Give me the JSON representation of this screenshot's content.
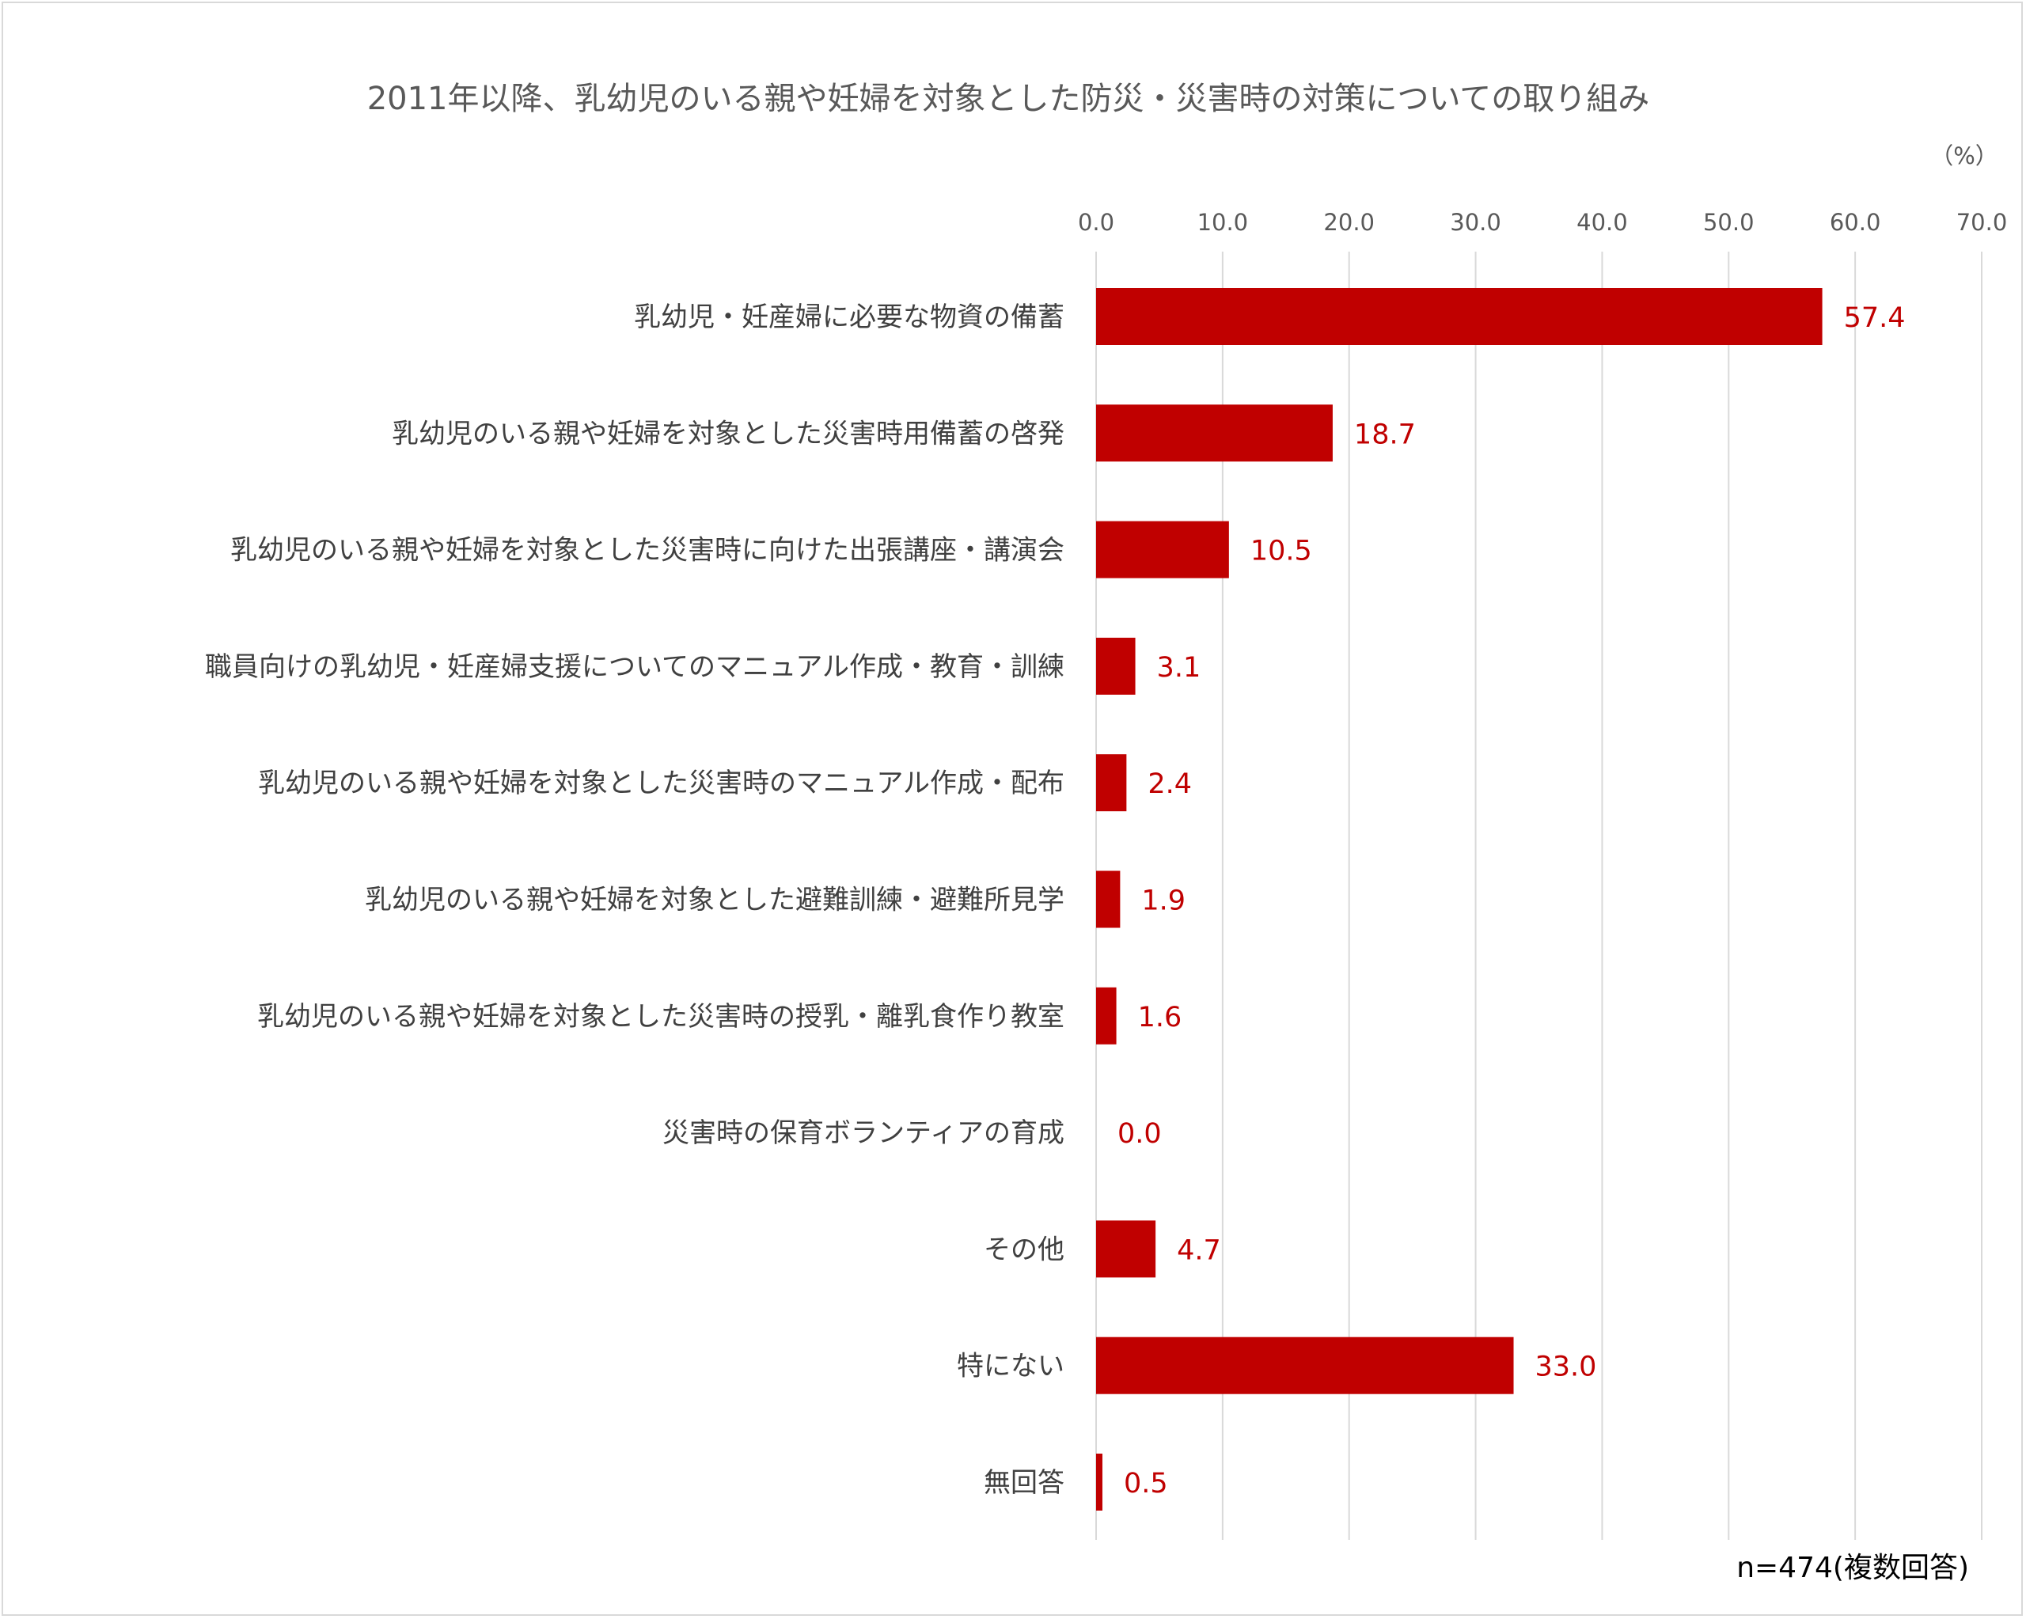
{
  "chart_data": {
    "type": "bar",
    "orientation": "horizontal",
    "title": "2011年以降、乳幼児のいる親や妊婦を対象とした防災・災害時の対策についての取り組み",
    "unit_label": "（%）",
    "xlim": [
      0,
      70
    ],
    "xticks": [
      "0.0",
      "10.0",
      "20.0",
      "30.0",
      "40.0",
      "50.0",
      "60.0",
      "70.0"
    ],
    "grid": true,
    "legend": "none",
    "bar_color": "#c00000",
    "categories": [
      "乳幼児・妊産婦に必要な物資の備蓄",
      "乳幼児のいる親や妊婦を対象とした災害時用備蓄の啓発",
      "乳幼児のいる親や妊婦を対象とした災害時に向けた出張講座・講演会",
      "職員向けの乳幼児・妊産婦支援についてのマニュアル作成・教育・訓練",
      "乳幼児のいる親や妊婦を対象とした災害時のマニュアル作成・配布",
      "乳幼児のいる親や妊婦を対象とした避難訓練・避難所見学",
      "乳幼児のいる親や妊婦を対象とした災害時の授乳・離乳食作り教室",
      "災害時の保育ボランティアの育成",
      "その他",
      "特にない",
      "無回答"
    ],
    "values": [
      57.4,
      18.7,
      10.5,
      3.1,
      2.4,
      1.9,
      1.6,
      0.0,
      4.7,
      33.0,
      0.5
    ],
    "value_labels": [
      "57.4",
      "18.7",
      "10.5",
      "3.1",
      "2.4",
      "1.9",
      "1.6",
      "0.0",
      "4.7",
      "33.0",
      "0.5"
    ],
    "note": "n=474(複数回答)"
  }
}
